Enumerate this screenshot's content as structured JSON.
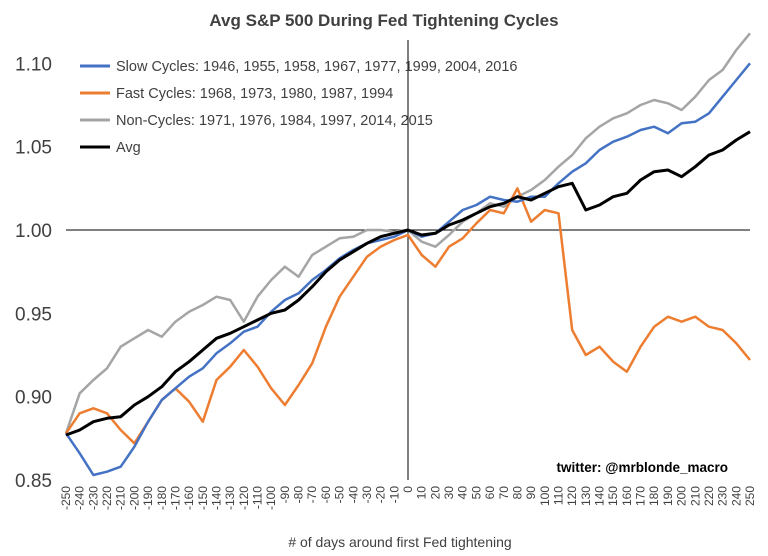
{
  "chart_data": {
    "type": "line",
    "title": "Avg S&P 500 During Fed Tightening Cycles",
    "xlabel": "# of days around first Fed tightening",
    "ylabel": "",
    "xlim": [
      -250,
      250
    ],
    "ylim": [
      0.85,
      1.12
    ],
    "yticks": [
      "0.85",
      "0.90",
      "0.95",
      "1.00",
      "1.05",
      "1.10"
    ],
    "xticks": [
      "-250",
      "-240",
      "-230",
      "-220",
      "-210",
      "-200",
      "-190",
      "-180",
      "-170",
      "-160",
      "-150",
      "-140",
      "-130",
      "-120",
      "-110",
      "-100",
      "-90",
      "-80",
      "-70",
      "-60",
      "-50",
      "-40",
      "-30",
      "-20",
      "-10",
      "0",
      "10",
      "20",
      "30",
      "40",
      "50",
      "60",
      "70",
      "80",
      "90",
      "100",
      "110",
      "120",
      "130",
      "140",
      "150",
      "160",
      "170",
      "180",
      "190",
      "200",
      "210",
      "220",
      "230",
      "240",
      "250"
    ],
    "reference_lines": {
      "x": 0,
      "y": 1.0
    },
    "credit": "twitter: @mrblonde_macro",
    "legend_position": "top-left",
    "series": [
      {
        "name": "Slow Cycles: 1946, 1955, 1958, 1967, 1977, 1999, 2004, 2016",
        "color": "#4472c4",
        "x": [
          -250,
          -240,
          -230,
          -220,
          -210,
          -200,
          -190,
          -180,
          -170,
          -160,
          -150,
          -140,
          -130,
          -120,
          -110,
          -100,
          -90,
          -80,
          -70,
          -60,
          -50,
          -40,
          -30,
          -20,
          -10,
          0,
          10,
          20,
          30,
          40,
          50,
          60,
          70,
          80,
          90,
          100,
          110,
          120,
          130,
          140,
          150,
          160,
          170,
          180,
          190,
          200,
          210,
          220,
          230,
          240,
          250
        ],
        "values": [
          0.878,
          0.866,
          0.853,
          0.855,
          0.858,
          0.87,
          0.885,
          0.898,
          0.905,
          0.912,
          0.917,
          0.926,
          0.932,
          0.939,
          0.942,
          0.951,
          0.958,
          0.962,
          0.97,
          0.976,
          0.983,
          0.988,
          0.992,
          0.994,
          0.996,
          1.0,
          0.996,
          0.998,
          1.005,
          1.012,
          1.015,
          1.02,
          1.018,
          1.017,
          1.02,
          1.02,
          1.028,
          1.035,
          1.04,
          1.048,
          1.053,
          1.056,
          1.06,
          1.062,
          1.058,
          1.064,
          1.065,
          1.07,
          1.08,
          1.09,
          1.1
        ]
      },
      {
        "name": "Fast Cycles: 1968, 1973, 1980, 1987, 1994",
        "color": "#ed7d31",
        "x": [
          -250,
          -240,
          -230,
          -220,
          -210,
          -200,
          -190,
          -180,
          -170,
          -160,
          -150,
          -140,
          -130,
          -120,
          -110,
          -100,
          -90,
          -80,
          -70,
          -60,
          -50,
          -40,
          -30,
          -20,
          -10,
          0,
          10,
          20,
          30,
          40,
          50,
          60,
          70,
          80,
          90,
          100,
          110,
          120,
          130,
          140,
          150,
          160,
          170,
          180,
          190,
          200,
          210,
          220,
          230,
          240,
          250
        ],
        "values": [
          0.878,
          0.89,
          0.893,
          0.89,
          0.88,
          0.872,
          0.885,
          0.898,
          0.905,
          0.897,
          0.885,
          0.91,
          0.918,
          0.928,
          0.918,
          0.905,
          0.895,
          0.907,
          0.92,
          0.942,
          0.96,
          0.972,
          0.984,
          0.99,
          0.994,
          0.997,
          0.985,
          0.978,
          0.99,
          0.995,
          1.004,
          1.012,
          1.01,
          1.025,
          1.005,
          1.012,
          1.01,
          0.94,
          0.925,
          0.93,
          0.921,
          0.915,
          0.93,
          0.942,
          0.948,
          0.945,
          0.948,
          0.942,
          0.94,
          0.932,
          0.922
        ]
      },
      {
        "name": "Non-Cycles: 1971, 1976, 1984, 1997, 2014, 2015",
        "color": "#a5a5a5",
        "x": [
          -250,
          -240,
          -230,
          -220,
          -210,
          -200,
          -190,
          -180,
          -170,
          -160,
          -150,
          -140,
          -130,
          -120,
          -110,
          -100,
          -90,
          -80,
          -70,
          -60,
          -50,
          -40,
          -30,
          -20,
          -10,
          0,
          10,
          20,
          30,
          40,
          50,
          60,
          70,
          80,
          90,
          100,
          110,
          120,
          130,
          140,
          150,
          160,
          170,
          180,
          190,
          200,
          210,
          220,
          230,
          240,
          250
        ],
        "values": [
          0.878,
          0.902,
          0.91,
          0.917,
          0.93,
          0.935,
          0.94,
          0.936,
          0.945,
          0.951,
          0.955,
          0.96,
          0.958,
          0.945,
          0.96,
          0.97,
          0.978,
          0.972,
          0.985,
          0.99,
          0.995,
          0.996,
          1.0,
          1.0,
          0.999,
          1.0,
          0.993,
          0.99,
          0.997,
          1.005,
          1.01,
          1.016,
          1.014,
          1.02,
          1.024,
          1.03,
          1.038,
          1.045,
          1.055,
          1.062,
          1.067,
          1.07,
          1.075,
          1.078,
          1.076,
          1.072,
          1.08,
          1.09,
          1.096,
          1.108,
          1.118
        ]
      },
      {
        "name": "Avg",
        "color": "#000000",
        "x": [
          -250,
          -240,
          -230,
          -220,
          -210,
          -200,
          -190,
          -180,
          -170,
          -160,
          -150,
          -140,
          -130,
          -120,
          -110,
          -100,
          -90,
          -80,
          -70,
          -60,
          -50,
          -40,
          -30,
          -20,
          -10,
          0,
          10,
          20,
          30,
          40,
          50,
          60,
          70,
          80,
          90,
          100,
          110,
          120,
          130,
          140,
          150,
          160,
          170,
          180,
          190,
          200,
          210,
          220,
          230,
          240,
          250
        ],
        "values": [
          0.877,
          0.88,
          0.885,
          0.887,
          0.888,
          0.895,
          0.9,
          0.906,
          0.915,
          0.921,
          0.928,
          0.935,
          0.938,
          0.942,
          0.946,
          0.95,
          0.952,
          0.958,
          0.966,
          0.975,
          0.982,
          0.987,
          0.992,
          0.996,
          0.998,
          1.0,
          0.997,
          0.998,
          1.003,
          1.006,
          1.01,
          1.014,
          1.016,
          1.02,
          1.018,
          1.022,
          1.026,
          1.028,
          1.012,
          1.015,
          1.02,
          1.022,
          1.03,
          1.035,
          1.036,
          1.032,
          1.038,
          1.045,
          1.048,
          1.054,
          1.059
        ]
      }
    ]
  }
}
